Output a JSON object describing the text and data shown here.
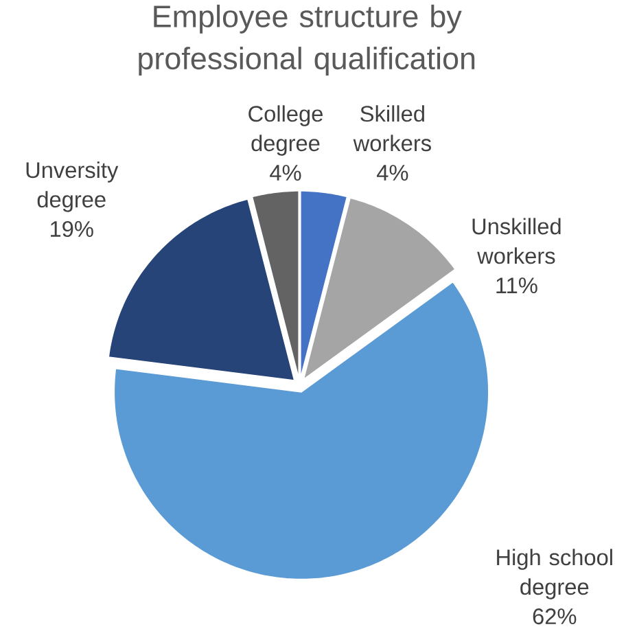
{
  "chart_data": {
    "type": "pie",
    "title": "Employee structure by professional qualification",
    "categories": [
      "Skilled workers",
      "Unskilled workers",
      "High school degree",
      "Unversity degree",
      "College degree"
    ],
    "values": [
      4,
      11,
      62,
      19,
      4
    ],
    "value_labels": [
      "4%",
      "11%",
      "62%",
      "19%",
      "4%"
    ],
    "colors": [
      "#4472c4",
      "#a5a5a5",
      "#5b9bd5",
      "#264478",
      "#636363"
    ]
  }
}
